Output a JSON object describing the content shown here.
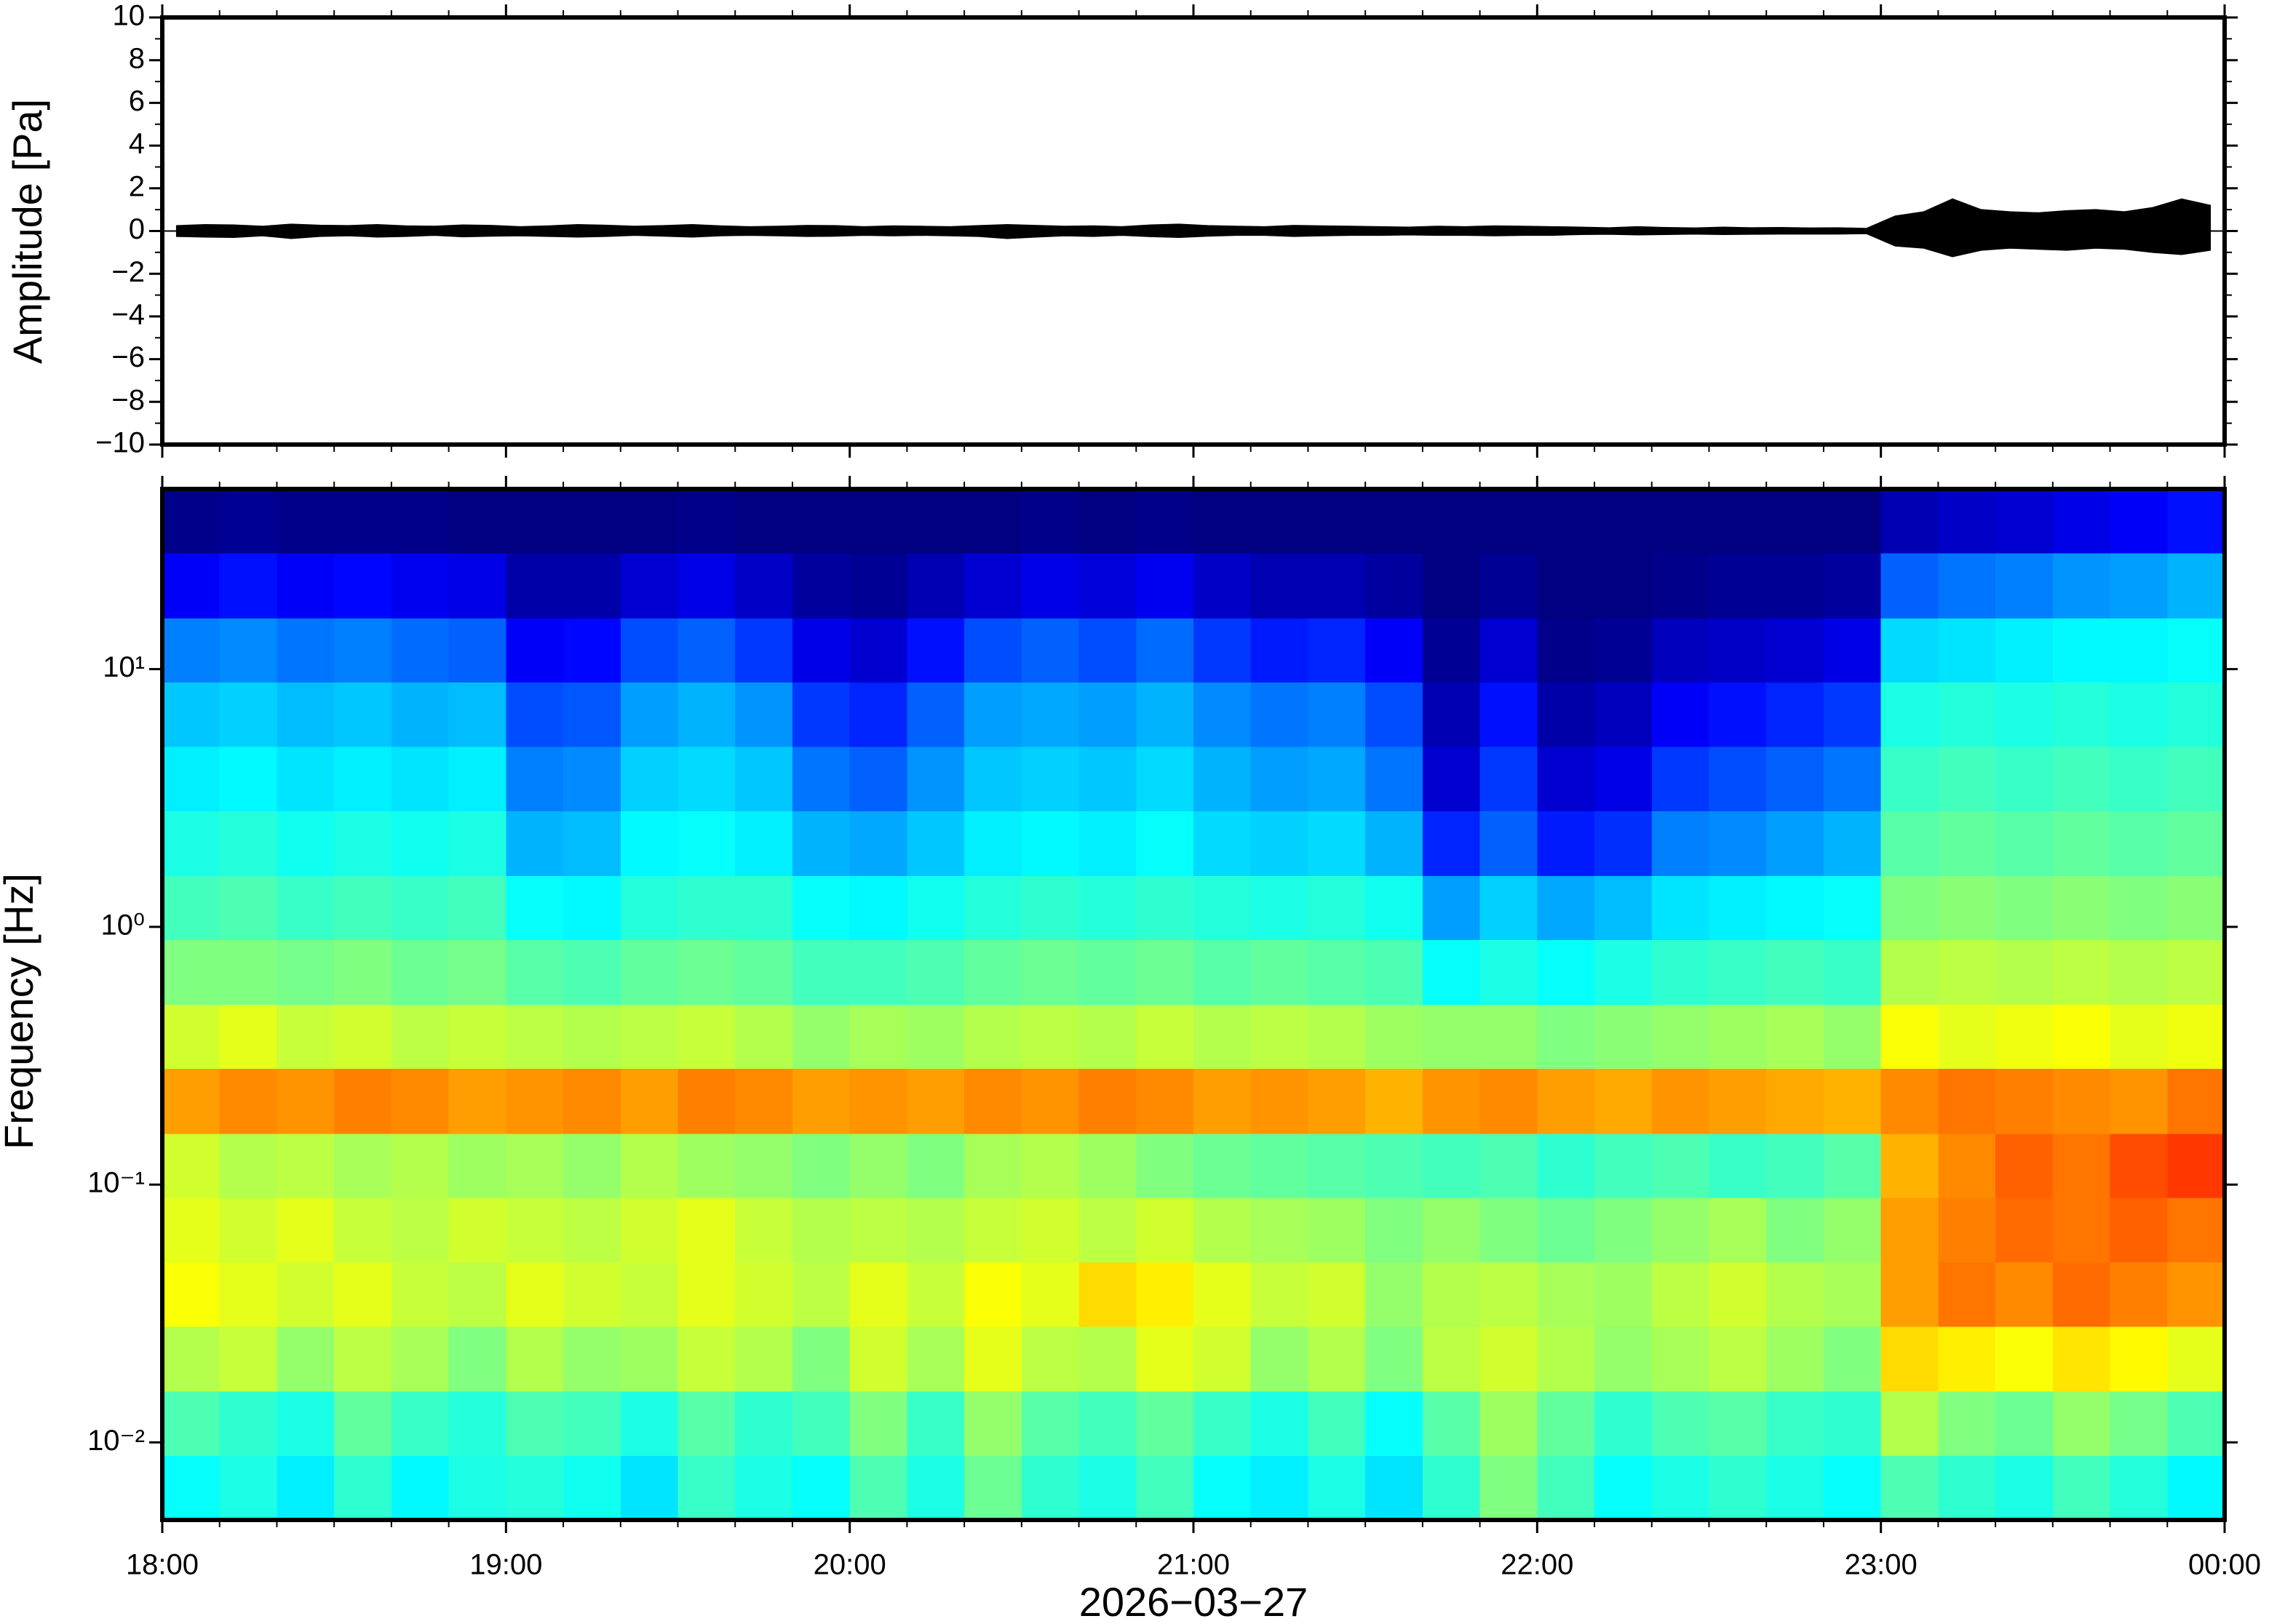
{
  "chart_data": [
    {
      "type": "line",
      "ylabel": "Amplitude [Pa]",
      "xlim": [
        0,
        360
      ],
      "xticks": [
        0,
        60,
        120,
        180,
        240,
        300,
        360
      ],
      "xminorticks": [
        10,
        20,
        30,
        40,
        50,
        70,
        80,
        90,
        100,
        110,
        130,
        140,
        150,
        160,
        170,
        190,
        200,
        210,
        220,
        230,
        250,
        260,
        270,
        280,
        290,
        310,
        320,
        330,
        340,
        350
      ],
      "ylim": [
        -10,
        10
      ],
      "yticks": [
        {
          "value": -10,
          "label": "−10"
        },
        {
          "value": -8,
          "label": "−8"
        },
        {
          "value": -6,
          "label": "−6"
        },
        {
          "value": -4,
          "label": "−4"
        },
        {
          "value": -2,
          "label": "−2"
        },
        0,
        2,
        4,
        6,
        8,
        10
      ],
      "yminorticks": [
        -9,
        -7,
        -5,
        -3,
        -1,
        1,
        3,
        5,
        7,
        9
      ],
      "x": [
        2.5,
        7.5,
        12.5,
        17.5,
        22.5,
        27.5,
        32.5,
        37.5,
        42.5,
        47.5,
        52.5,
        57.5,
        62.5,
        67.5,
        72.5,
        77.5,
        82.5,
        87.5,
        92.5,
        97.5,
        102.5,
        107.5,
        112.5,
        117.5,
        122.5,
        127.5,
        132.5,
        137.5,
        142.5,
        147.5,
        152.5,
        157.5,
        162.5,
        167.5,
        172.5,
        177.5,
        182.5,
        187.5,
        192.5,
        197.5,
        202.5,
        207.5,
        212.5,
        217.5,
        222.5,
        227.5,
        232.5,
        237.5,
        242.5,
        247.5,
        252.5,
        257.5,
        262.5,
        267.5,
        272.5,
        277.5,
        282.5,
        287.5,
        292.5,
        297.5,
        302.5,
        307.5,
        312.5,
        317.5,
        322.5,
        327.5,
        332.5,
        337.5,
        342.5,
        347.5,
        352.5,
        357.5
      ],
      "series": [
        {
          "color": "#000000",
          "values": [
            0.25,
            0.3,
            0.28,
            0.22,
            0.32,
            0.27,
            0.25,
            0.3,
            0.24,
            0.22,
            0.28,
            0.26,
            0.2,
            0.24,
            0.3,
            0.27,
            0.22,
            0.25,
            0.3,
            0.24,
            0.2,
            0.22,
            0.26,
            0.25,
            0.2,
            0.24,
            0.22,
            0.2,
            0.25,
            0.3,
            0.26,
            0.22,
            0.24,
            0.2,
            0.28,
            0.32,
            0.25,
            0.22,
            0.2,
            0.26,
            0.24,
            0.22,
            0.2,
            0.18,
            0.22,
            0.2,
            0.24,
            0.22,
            0.2,
            0.18,
            0.15,
            0.2,
            0.16,
            0.14,
            0.18,
            0.15,
            0.16,
            0.14,
            0.15,
            0.12,
            0.7,
            0.9,
            1.5,
            1.0,
            0.9,
            0.85,
            0.95,
            1.0,
            0.9,
            1.1,
            1.5,
            1.2
          ]
        },
        {
          "color": "#000000",
          "values": [
            -0.25,
            -0.28,
            -0.3,
            -0.22,
            -0.35,
            -0.25,
            -0.22,
            -0.28,
            -0.25,
            -0.2,
            -0.27,
            -0.24,
            -0.22,
            -0.25,
            -0.28,
            -0.25,
            -0.2,
            -0.24,
            -0.28,
            -0.22,
            -0.2,
            -0.22,
            -0.25,
            -0.24,
            -0.2,
            -0.22,
            -0.2,
            -0.22,
            -0.25,
            -0.35,
            -0.28,
            -0.22,
            -0.25,
            -0.2,
            -0.26,
            -0.3,
            -0.24,
            -0.2,
            -0.2,
            -0.25,
            -0.22,
            -0.2,
            -0.2,
            -0.18,
            -0.2,
            -0.2,
            -0.22,
            -0.2,
            -0.2,
            -0.16,
            -0.15,
            -0.18,
            -0.16,
            -0.14,
            -0.16,
            -0.15,
            -0.14,
            -0.14,
            -0.14,
            -0.12,
            -0.7,
            -0.8,
            -1.2,
            -0.9,
            -0.8,
            -0.85,
            -0.9,
            -0.8,
            -0.85,
            -1.0,
            -1.1,
            -0.9
          ]
        }
      ]
    },
    {
      "type": "heatmap",
      "ylabel": "Frequency [Hz]",
      "xlabel": "2026−03−27",
      "xlim": [
        0,
        360
      ],
      "xticks": [
        {
          "value": 0,
          "label": "18:00"
        },
        {
          "value": 60,
          "label": "19:00"
        },
        {
          "value": 120,
          "label": "20:00"
        },
        {
          "value": 180,
          "label": "21:00"
        },
        {
          "value": 240,
          "label": "22:00"
        },
        {
          "value": 300,
          "label": "23:00"
        },
        {
          "value": 360,
          "label": "00:00"
        }
      ],
      "xminorticks": [
        10,
        20,
        30,
        40,
        50,
        70,
        80,
        90,
        100,
        110,
        130,
        140,
        150,
        160,
        170,
        190,
        200,
        210,
        220,
        230,
        250,
        260,
        270,
        280,
        290,
        310,
        320,
        330,
        340,
        350
      ],
      "ylim": [
        0.005,
        50
      ],
      "log_y": true,
      "yticks": [
        {
          "value": 0.01,
          "label": "10⁻²"
        },
        {
          "value": 0.1,
          "label": "10⁻¹"
        },
        {
          "value": 1,
          "label": "10⁰"
        },
        {
          "value": 10,
          "label": "10¹"
        }
      ],
      "colorscale": "jet",
      "zlim": [
        0,
        1
      ],
      "x_edges": [
        0,
        10,
        20,
        30,
        40,
        50,
        60,
        70,
        80,
        90,
        100,
        110,
        120,
        130,
        140,
        150,
        160,
        170,
        180,
        190,
        200,
        210,
        220,
        230,
        240,
        250,
        260,
        270,
        280,
        290,
        300,
        310,
        320,
        330,
        340,
        350,
        360
      ],
      "y_edges": [
        0.005,
        0.0089,
        0.0158,
        0.0282,
        0.0501,
        0.0891,
        0.158,
        0.282,
        0.501,
        0.891,
        1.58,
        2.82,
        5.01,
        8.91,
        15.8,
        28.2,
        50
      ],
      "values": [
        [
          0.38,
          0.4,
          0.36,
          0.42,
          0.37,
          0.4,
          0.41,
          0.39,
          0.35,
          0.43,
          0.4,
          0.38,
          0.45,
          0.4,
          0.48,
          0.42,
          0.4,
          0.44,
          0.38,
          0.36,
          0.4,
          0.35,
          0.42,
          0.5,
          0.44,
          0.38,
          0.4,
          0.42,
          0.4,
          0.38,
          0.45,
          0.42,
          0.4,
          0.44,
          0.41,
          0.37
        ],
        [
          0.45,
          0.42,
          0.4,
          0.47,
          0.43,
          0.41,
          0.45,
          0.44,
          0.4,
          0.46,
          0.42,
          0.44,
          0.5,
          0.43,
          0.52,
          0.46,
          0.44,
          0.47,
          0.43,
          0.4,
          0.44,
          0.38,
          0.46,
          0.53,
          0.47,
          0.42,
          0.45,
          0.46,
          0.43,
          0.42,
          0.55,
          0.5,
          0.48,
          0.52,
          0.49,
          0.45
        ],
        [
          0.55,
          0.57,
          0.52,
          0.56,
          0.54,
          0.5,
          0.55,
          0.52,
          0.53,
          0.57,
          0.55,
          0.5,
          0.58,
          0.54,
          0.6,
          0.56,
          0.55,
          0.6,
          0.58,
          0.52,
          0.55,
          0.5,
          0.56,
          0.58,
          0.55,
          0.52,
          0.54,
          0.56,
          0.53,
          0.5,
          0.66,
          0.64,
          0.62,
          0.65,
          0.63,
          0.6
        ],
        [
          0.62,
          0.6,
          0.58,
          0.6,
          0.57,
          0.56,
          0.6,
          0.58,
          0.57,
          0.6,
          0.58,
          0.56,
          0.6,
          0.57,
          0.62,
          0.6,
          0.66,
          0.64,
          0.6,
          0.57,
          0.58,
          0.52,
          0.55,
          0.56,
          0.54,
          0.53,
          0.56,
          0.58,
          0.55,
          0.54,
          0.72,
          0.76,
          0.74,
          0.77,
          0.75,
          0.73
        ],
        [
          0.6,
          0.58,
          0.6,
          0.57,
          0.56,
          0.58,
          0.57,
          0.56,
          0.58,
          0.6,
          0.57,
          0.55,
          0.56,
          0.55,
          0.57,
          0.58,
          0.56,
          0.58,
          0.55,
          0.54,
          0.53,
          0.5,
          0.52,
          0.5,
          0.48,
          0.5,
          0.52,
          0.54,
          0.5,
          0.52,
          0.72,
          0.75,
          0.77,
          0.76,
          0.78,
          0.76
        ],
        [
          0.58,
          0.55,
          0.56,
          0.54,
          0.55,
          0.53,
          0.54,
          0.52,
          0.55,
          0.53,
          0.52,
          0.5,
          0.52,
          0.5,
          0.54,
          0.55,
          0.53,
          0.5,
          0.48,
          0.47,
          0.46,
          0.45,
          0.44,
          0.45,
          0.42,
          0.44,
          0.45,
          0.43,
          0.44,
          0.46,
          0.7,
          0.74,
          0.78,
          0.76,
          0.8,
          0.82
        ],
        [
          0.72,
          0.74,
          0.73,
          0.75,
          0.74,
          0.72,
          0.73,
          0.74,
          0.72,
          0.75,
          0.74,
          0.72,
          0.73,
          0.72,
          0.74,
          0.73,
          0.75,
          0.74,
          0.72,
          0.73,
          0.72,
          0.7,
          0.73,
          0.74,
          0.72,
          0.71,
          0.73,
          0.72,
          0.71,
          0.7,
          0.74,
          0.76,
          0.75,
          0.74,
          0.73,
          0.76
        ],
        [
          0.58,
          0.6,
          0.57,
          0.58,
          0.56,
          0.57,
          0.56,
          0.55,
          0.56,
          0.57,
          0.55,
          0.52,
          0.54,
          0.53,
          0.55,
          0.56,
          0.55,
          0.57,
          0.55,
          0.56,
          0.55,
          0.53,
          0.52,
          0.52,
          0.5,
          0.51,
          0.52,
          0.53,
          0.54,
          0.52,
          0.62,
          0.6,
          0.61,
          0.62,
          0.6,
          0.61
        ],
        [
          0.5,
          0.5,
          0.49,
          0.5,
          0.48,
          0.49,
          0.46,
          0.45,
          0.47,
          0.48,
          0.47,
          0.44,
          0.44,
          0.45,
          0.47,
          0.48,
          0.47,
          0.48,
          0.46,
          0.47,
          0.46,
          0.45,
          0.38,
          0.4,
          0.38,
          0.4,
          0.42,
          0.43,
          0.44,
          0.43,
          0.55,
          0.56,
          0.55,
          0.56,
          0.55,
          0.56
        ],
        [
          0.44,
          0.45,
          0.43,
          0.44,
          0.43,
          0.44,
          0.38,
          0.37,
          0.41,
          0.42,
          0.42,
          0.38,
          0.37,
          0.39,
          0.41,
          0.42,
          0.41,
          0.42,
          0.41,
          0.4,
          0.41,
          0.39,
          0.28,
          0.33,
          0.29,
          0.31,
          0.35,
          0.36,
          0.37,
          0.38,
          0.5,
          0.51,
          0.5,
          0.51,
          0.5,
          0.51
        ],
        [
          0.4,
          0.41,
          0.39,
          0.4,
          0.39,
          0.4,
          0.3,
          0.31,
          0.37,
          0.38,
          0.36,
          0.3,
          0.29,
          0.32,
          0.36,
          0.37,
          0.36,
          0.38,
          0.34,
          0.33,
          0.34,
          0.3,
          0.16,
          0.22,
          0.15,
          0.17,
          0.25,
          0.26,
          0.28,
          0.3,
          0.46,
          0.47,
          0.46,
          0.47,
          0.46,
          0.47
        ],
        [
          0.36,
          0.37,
          0.35,
          0.36,
          0.35,
          0.36,
          0.25,
          0.26,
          0.33,
          0.34,
          0.32,
          0.24,
          0.22,
          0.27,
          0.32,
          0.33,
          0.32,
          0.34,
          0.3,
          0.28,
          0.29,
          0.24,
          0.08,
          0.18,
          0.08,
          0.1,
          0.18,
          0.2,
          0.22,
          0.24,
          0.43,
          0.44,
          0.43,
          0.44,
          0.43,
          0.44
        ],
        [
          0.32,
          0.33,
          0.31,
          0.32,
          0.3,
          0.31,
          0.2,
          0.21,
          0.28,
          0.3,
          0.27,
          0.18,
          0.16,
          0.22,
          0.28,
          0.29,
          0.28,
          0.3,
          0.26,
          0.24,
          0.25,
          0.2,
          0.05,
          0.14,
          0.04,
          0.06,
          0.12,
          0.14,
          0.16,
          0.18,
          0.4,
          0.41,
          0.4,
          0.41,
          0.4,
          0.41
        ],
        [
          0.25,
          0.26,
          0.24,
          0.25,
          0.23,
          0.22,
          0.12,
          0.13,
          0.2,
          0.22,
          0.18,
          0.1,
          0.08,
          0.14,
          0.2,
          0.22,
          0.2,
          0.23,
          0.18,
          0.15,
          0.16,
          0.12,
          0.02,
          0.08,
          0.01,
          0.02,
          0.06,
          0.07,
          0.08,
          0.1,
          0.34,
          0.35,
          0.36,
          0.37,
          0.37,
          0.38
        ],
        [
          0.12,
          0.14,
          0.12,
          0.13,
          0.11,
          0.1,
          0.04,
          0.04,
          0.08,
          0.1,
          0.07,
          0.03,
          0.02,
          0.05,
          0.08,
          0.1,
          0.09,
          0.11,
          0.07,
          0.05,
          0.05,
          0.03,
          0.0,
          0.02,
          0.0,
          0.0,
          0.01,
          0.02,
          0.02,
          0.03,
          0.22,
          0.24,
          0.25,
          0.27,
          0.28,
          0.3
        ],
        [
          0.01,
          0.02,
          0.01,
          0.01,
          0.01,
          0.0,
          0.0,
          0.0,
          0.0,
          0.01,
          0.0,
          0.0,
          0.0,
          0.0,
          0.0,
          0.01,
          0.0,
          0.01,
          0.0,
          0.0,
          0.0,
          0.0,
          0.0,
          0.0,
          0.0,
          0.0,
          0.0,
          0.0,
          0.0,
          0.0,
          0.05,
          0.07,
          0.08,
          0.1,
          0.12,
          0.14
        ]
      ]
    }
  ]
}
